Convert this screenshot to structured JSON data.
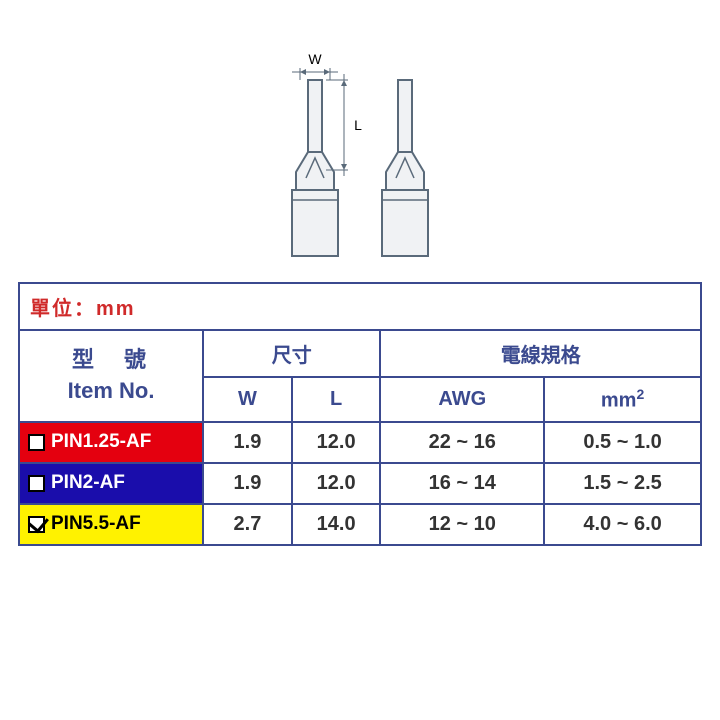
{
  "colors": {
    "border": "#3b4a8f",
    "header_text": "#3b4a8f",
    "unit_text": "#d02a2a",
    "row_bg": {
      "red": "#e4000f",
      "blue": "#1a0dab",
      "yellow": "#fff200"
    },
    "row_text": {
      "red": "#ffffff",
      "blue": "#ffffff",
      "yellow": "#000000"
    },
    "data_text": "#333333",
    "diagram_stroke": "#5a6a7a",
    "diagram_fill": "#f0f2f4"
  },
  "unit_label": "單位：mm",
  "headers": {
    "item_cn": "型　號",
    "item_en": "Item No.",
    "dim": "尺寸",
    "wire": "電線規格",
    "W": "W",
    "L": "L",
    "awg": "AWG",
    "mm2": "mm",
    "mm2_sup": "2"
  },
  "col_widths": {
    "item": "27%",
    "W": "13%",
    "L": "13%",
    "awg": "24%",
    "mm2": "23%"
  },
  "rows": [
    {
      "code": "PIN1.25-AF",
      "checked": false,
      "bg": "red",
      "W": "1.9",
      "L": "12.0",
      "awg": "22 ~ 16",
      "mm2": "0.5 ~ 1.0"
    },
    {
      "code": "PIN2-AF",
      "checked": false,
      "bg": "blue",
      "W": "1.9",
      "L": "12.0",
      "awg": "16 ~ 14",
      "mm2": "1.5 ~ 2.5"
    },
    {
      "code": "PIN5.5-AF",
      "checked": true,
      "bg": "yellow",
      "W": "2.7",
      "L": "14.0",
      "awg": "12 ~ 10",
      "mm2": "4.0 ~ 6.0"
    }
  ],
  "diagram": {
    "label_W": "W",
    "label_L": "L"
  }
}
